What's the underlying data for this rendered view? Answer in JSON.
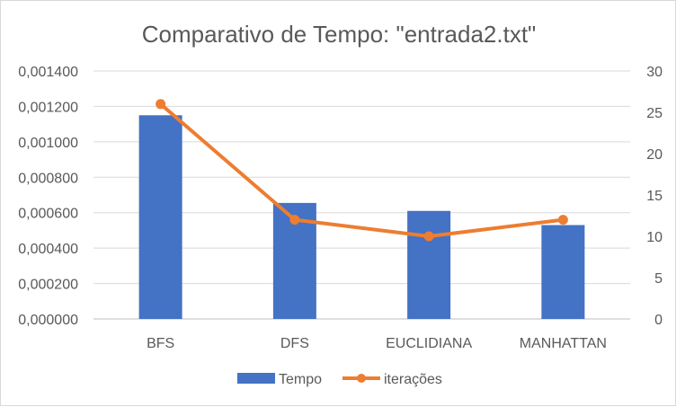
{
  "chart_data": {
    "type": "bar",
    "title": "Comparativo de Tempo: \"entrada2.txt\"",
    "categories": [
      "BFS",
      "DFS",
      "EUCLIDIANA",
      "MANHATTAN"
    ],
    "series": [
      {
        "name": "Tempo",
        "type": "bar",
        "axis": "left",
        "color": "#4472C4",
        "values": [
          0.00115,
          0.000655,
          0.00061,
          0.00053
        ]
      },
      {
        "name": "iterações",
        "type": "line",
        "axis": "right",
        "color": "#ED7D31",
        "values": [
          26,
          12,
          10,
          12
        ]
      }
    ],
    "y_left": {
      "min": 0,
      "max": 0.0014,
      "step": 0.0002,
      "tick_labels": [
        "0,000000",
        "0,000200",
        "0,000400",
        "0,000600",
        "0,000800",
        "0,001000",
        "0,001200",
        "0,001400"
      ]
    },
    "y_right": {
      "min": 0,
      "max": 30,
      "step": 5,
      "tick_labels": [
        "0",
        "5",
        "10",
        "15",
        "20",
        "25",
        "30"
      ]
    },
    "grid": true,
    "legend_position": "bottom"
  }
}
